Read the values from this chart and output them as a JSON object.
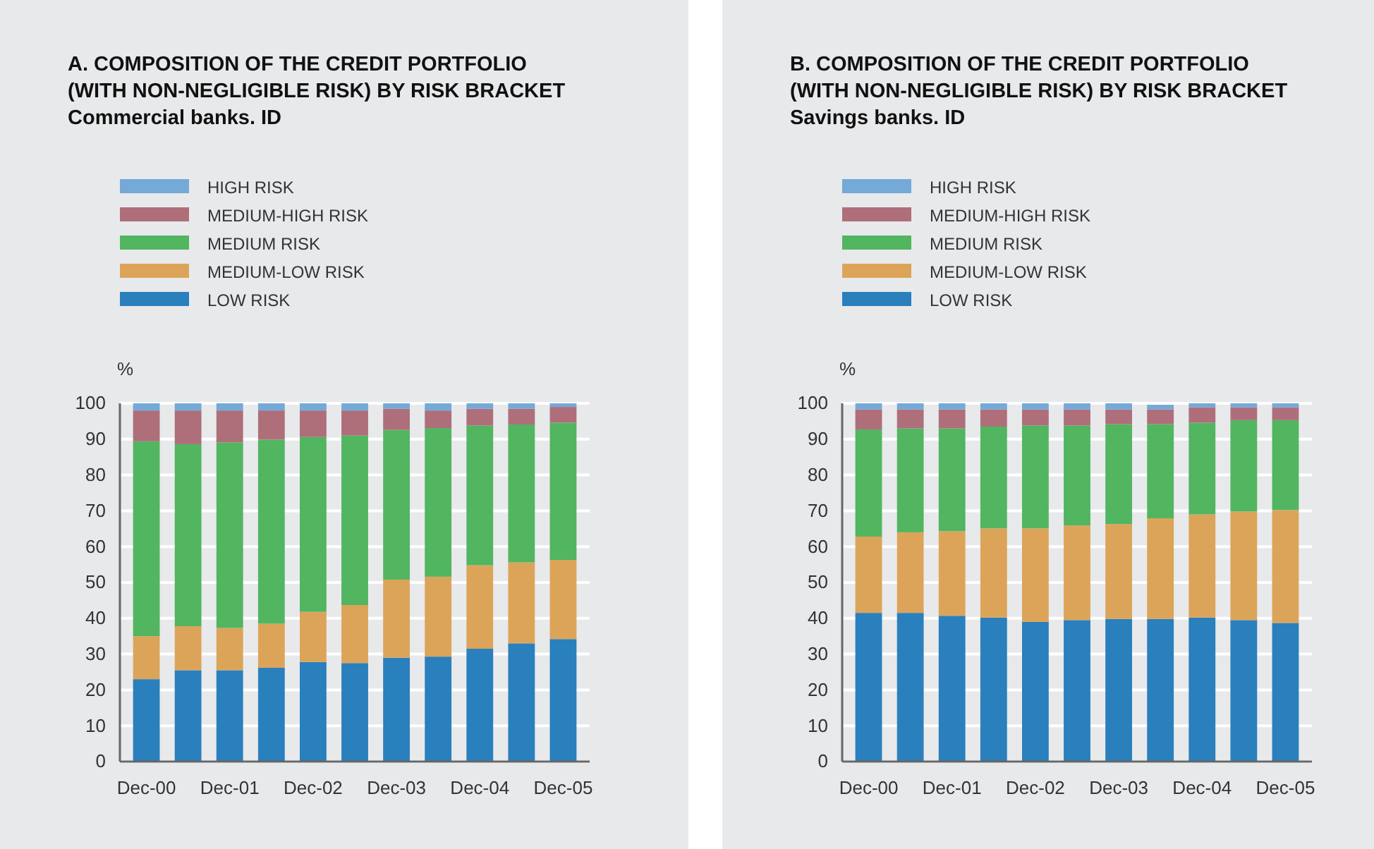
{
  "chart_data": [
    {
      "type": "bar",
      "stacked": true,
      "title": "A.  COMPOSITION OF THE CREDIT PORTFOLIO\n(WITH NON-NEGLIGIBLE RISK) BY RISK BRACKET",
      "subtitle": "Commercial banks. ID",
      "ylabel": "%",
      "categories": [
        "Dec-00",
        null,
        "Dec-01",
        null,
        "Dec-02",
        null,
        "Dec-03",
        null,
        "Dec-04",
        null,
        "Dec-05"
      ],
      "ylim": [
        0,
        100
      ],
      "yticks": [
        0,
        10,
        20,
        30,
        40,
        50,
        60,
        70,
        80,
        90,
        100
      ],
      "grid": "y",
      "legend": "top left",
      "series": [
        {
          "name": "LOW RISK",
          "color": "#2a7fbd",
          "values": [
            23,
            25.5,
            25.5,
            26.2,
            27.8,
            27.5,
            29,
            29.3,
            31.5,
            33,
            34.2
          ]
        },
        {
          "name": "MEDIUM-LOW RISK",
          "color": "#dca459",
          "values": [
            12,
            12.3,
            11.8,
            12.3,
            14,
            16.2,
            21.8,
            22.3,
            23.3,
            22.6,
            22.1
          ]
        },
        {
          "name": "MEDIUM RISK",
          "color": "#52b560",
          "values": [
            54.4,
            50.8,
            51.8,
            51.4,
            48.8,
            47.3,
            41.8,
            41.5,
            39,
            38.5,
            38.3
          ]
        },
        {
          "name": "MEDIUM-HIGH RISK",
          "color": "#ae6f7a",
          "values": [
            8.6,
            9.4,
            8.9,
            8.1,
            7.4,
            7,
            5.9,
            4.9,
            4.7,
            4.4,
            4.4
          ]
        },
        {
          "name": "HIGH RISK",
          "color": "#74a9d8",
          "values": [
            2,
            2,
            2,
            2,
            2,
            2,
            1.5,
            2,
            1.5,
            1.5,
            1
          ]
        }
      ]
    },
    {
      "type": "bar",
      "stacked": true,
      "title": "B.  COMPOSITION OF THE CREDIT PORTFOLIO\n(WITH NON-NEGLIGIBLE RISK) BY RISK BRACKET",
      "subtitle": "Savings banks. ID",
      "ylabel": "%",
      "categories": [
        "Dec-00",
        null,
        "Dec-01",
        null,
        "Dec-02",
        null,
        "Dec-03",
        null,
        "Dec-04",
        null,
        "Dec-05"
      ],
      "ylim": [
        0,
        100
      ],
      "yticks": [
        0,
        10,
        20,
        30,
        40,
        50,
        60,
        70,
        80,
        90,
        100
      ],
      "grid": "y",
      "legend": "top left",
      "series": [
        {
          "name": "LOW RISK",
          "color": "#2a7fbd",
          "values": [
            41.5,
            41.5,
            40.7,
            40.2,
            39,
            39.5,
            39.8,
            39.8,
            40.2,
            39.5,
            38.7
          ]
        },
        {
          "name": "MEDIUM-LOW RISK",
          "color": "#dca459",
          "values": [
            21.3,
            22.5,
            23.6,
            24.9,
            26.1,
            26.4,
            26.5,
            28.1,
            28.8,
            30.3,
            31.5
          ]
        },
        {
          "name": "MEDIUM RISK",
          "color": "#52b560",
          "values": [
            29.9,
            29,
            28.7,
            28.4,
            28.7,
            27.9,
            27.9,
            26.3,
            25.6,
            25.5,
            25.1
          ]
        },
        {
          "name": "MEDIUM-HIGH RISK",
          "color": "#ae6f7a",
          "values": [
            5.6,
            5.3,
            5.3,
            4.8,
            4.5,
            4.5,
            4.1,
            4.1,
            4.3,
            3.6,
            3.6
          ]
        },
        {
          "name": "HIGH RISK",
          "color": "#74a9d8",
          "values": [
            1.7,
            1.7,
            1.7,
            1.7,
            1.7,
            1.7,
            1.7,
            1.3,
            1.1,
            1.1,
            1.1
          ]
        }
      ]
    }
  ]
}
